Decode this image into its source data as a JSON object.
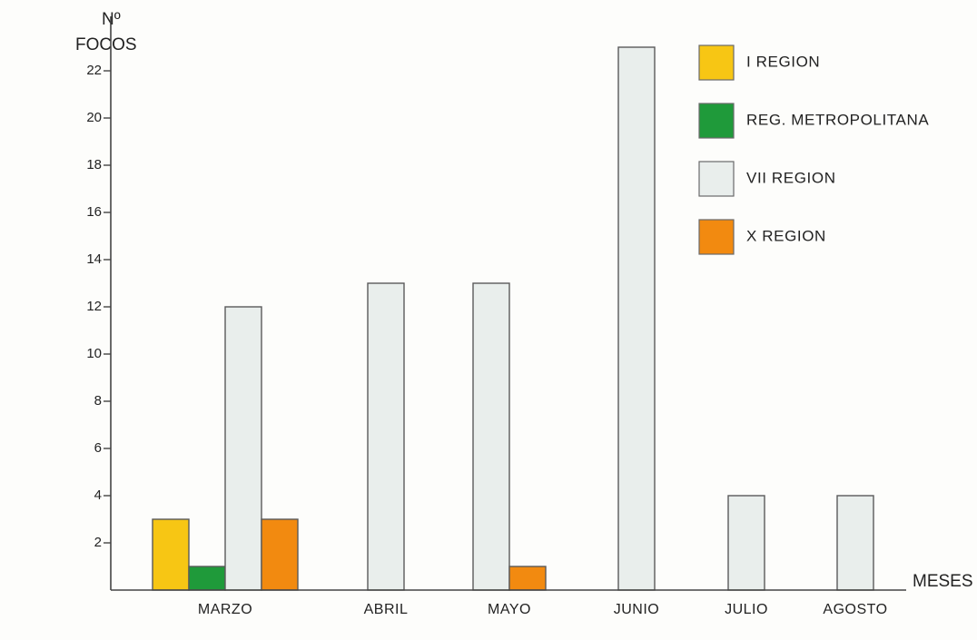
{
  "chart_data": {
    "type": "bar",
    "ylabel_line1": "Nº",
    "ylabel_line2": "FOCOS",
    "xlabel": "MESES",
    "ylim": [
      0,
      22
    ],
    "yticks": [
      2,
      4,
      6,
      8,
      10,
      12,
      14,
      16,
      18,
      20,
      22
    ],
    "grid": false,
    "legend_position": "top-right",
    "categories": [
      "MARZO",
      "ABRIL",
      "MAYO",
      "JUNIO",
      "JULIO",
      "AGOSTO"
    ],
    "series": [
      {
        "name": "I REGION",
        "color": "#f7c614",
        "values": [
          3,
          0,
          0,
          0,
          0,
          0
        ]
      },
      {
        "name": "REG. METROPOLITANA",
        "color": "#1f9a3a",
        "values": [
          1,
          0,
          0,
          0,
          0,
          0
        ]
      },
      {
        "name": "VII REGION",
        "color": "#e9eeec",
        "values": [
          12,
          13,
          13,
          23,
          4,
          4
        ]
      },
      {
        "name": "X REGION",
        "color": "#f28a10",
        "values": [
          3,
          0,
          1,
          0,
          0,
          0
        ]
      }
    ]
  }
}
